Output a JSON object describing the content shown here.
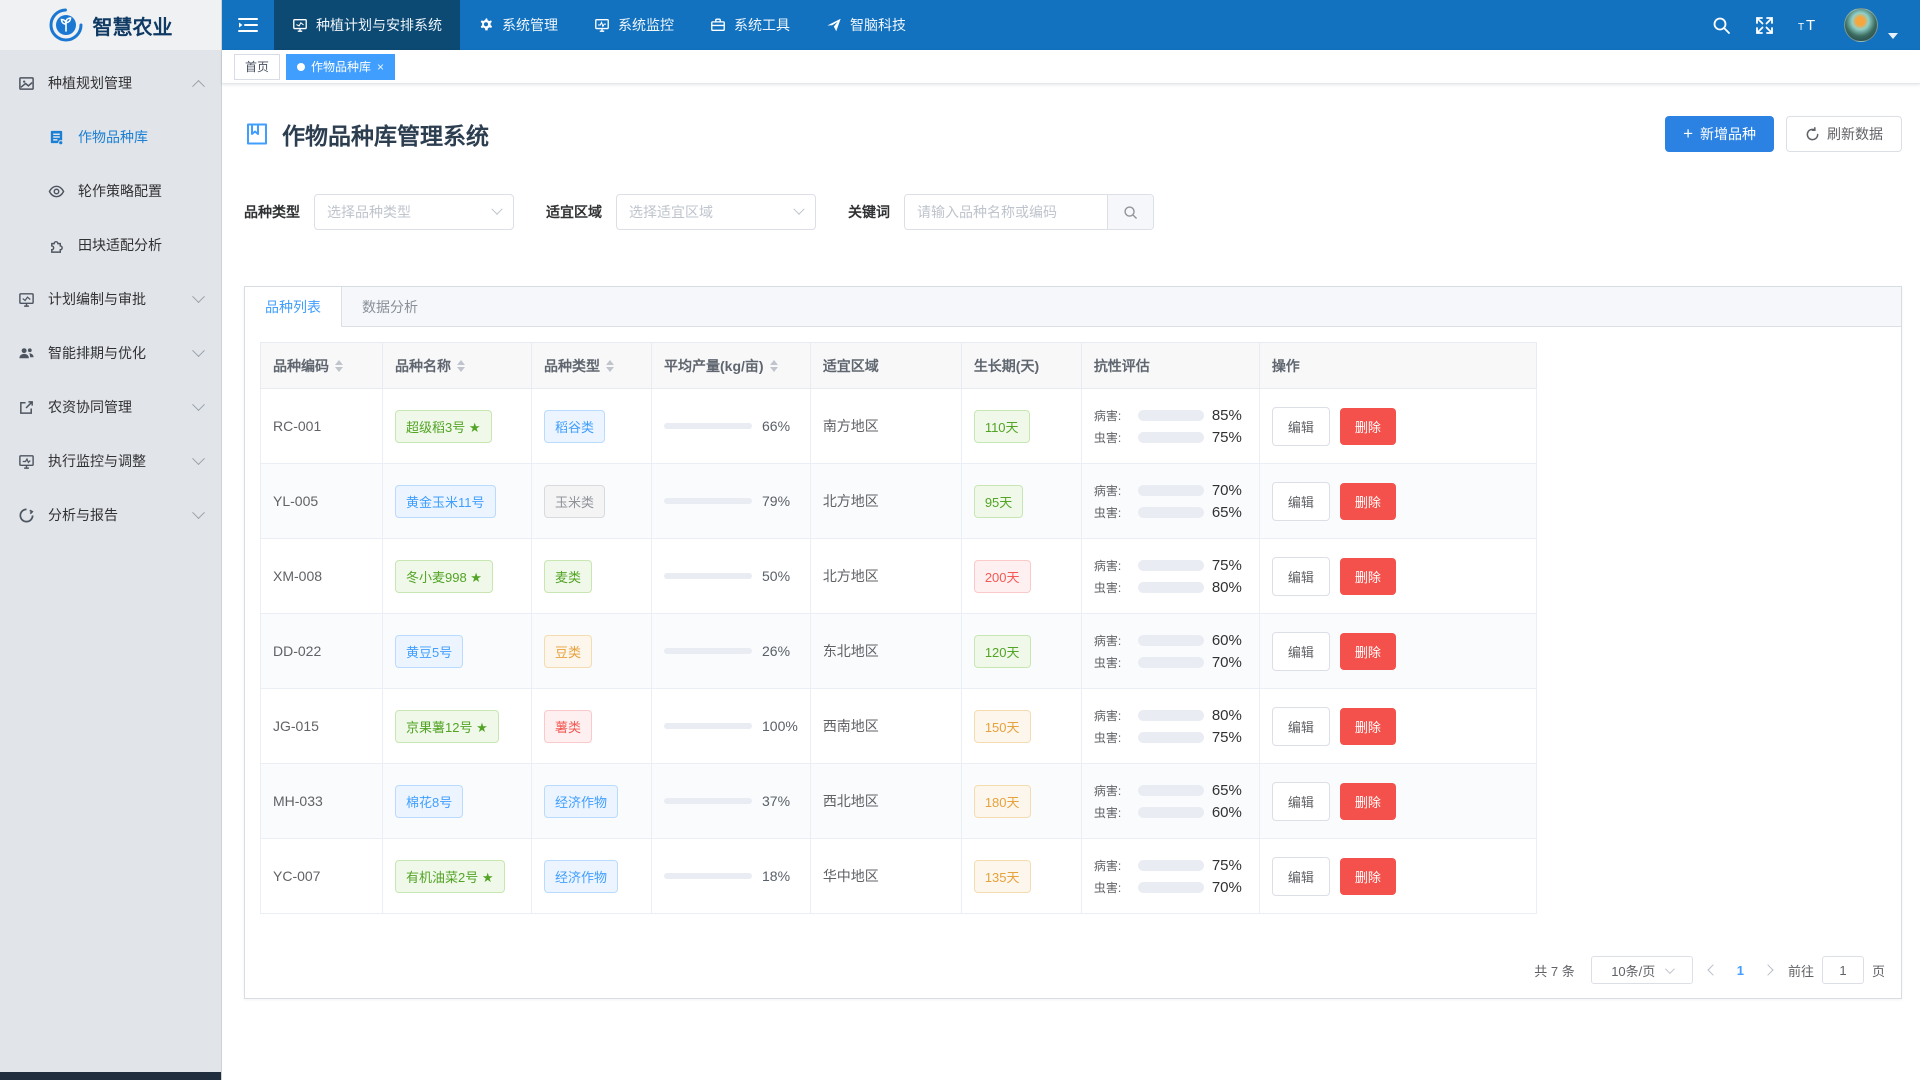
{
  "app": {
    "logo_text": "智慧农业"
  },
  "navbar": {
    "items": [
      {
        "icon": "monitor-icon",
        "label": "种植计划与安排系统",
        "active": true
      },
      {
        "icon": "gear-icon",
        "label": "系统管理",
        "active": false
      },
      {
        "icon": "monitor-chart-icon",
        "label": "系统监控",
        "active": false
      },
      {
        "icon": "toolbox-icon",
        "label": "系统工具",
        "active": false
      },
      {
        "icon": "paper-plane-icon",
        "label": "智脑科技",
        "active": false
      }
    ]
  },
  "sidebar": {
    "items": [
      {
        "icon": "image-icon",
        "label": "种植规划管理",
        "expanded": true
      },
      {
        "icon": "document-icon",
        "label": "作物品种库",
        "active": true
      },
      {
        "icon": "eye-icon",
        "label": "轮作策略配置"
      },
      {
        "icon": "puzzle-icon",
        "label": "田块适配分析"
      },
      {
        "icon": "monitor-icon",
        "label": "计划编制与审批"
      },
      {
        "icon": "users-icon",
        "label": "智能排期与优化"
      },
      {
        "icon": "external-link-icon",
        "label": "农资协同管理"
      },
      {
        "icon": "monitor-icon",
        "label": "执行监控与调整"
      },
      {
        "icon": "analysis-icon",
        "label": "分析与报告"
      }
    ]
  },
  "tags_bar": {
    "tabs": [
      {
        "label": "首页",
        "active": false
      },
      {
        "label": "作物品种库",
        "active": true,
        "close": "×"
      }
    ]
  },
  "page": {
    "title": "作物品种库管理系统",
    "add_button": "新增品种",
    "add_plus": "+",
    "refresh_button": "刷新数据"
  },
  "filters": {
    "type_label": "品种类型",
    "type_placeholder": "选择品种类型",
    "region_label": "适宜区域",
    "region_placeholder": "选择适宜区域",
    "keyword_label": "关键词",
    "keyword_placeholder": "请输入品种名称或编码",
    "keyword_value": ""
  },
  "tabs": [
    {
      "label": "品种列表",
      "active": true
    },
    {
      "label": "数据分析",
      "active": false
    }
  ],
  "table": {
    "columns": [
      {
        "label": "品种编码",
        "sortable": true
      },
      {
        "label": "品种名称",
        "sortable": true
      },
      {
        "label": "品种类型",
        "sortable": true
      },
      {
        "label": "平均产量(kg/亩)",
        "sortable": true
      },
      {
        "label": "适宜区域",
        "sortable": false
      },
      {
        "label": "生长期(天)",
        "sortable": false
      },
      {
        "label": "抗性评估",
        "sortable": false
      },
      {
        "label": "操作",
        "sortable": false
      }
    ],
    "disease_label": "病害:",
    "pest_label": "虫害:",
    "edit_label": "编辑",
    "delete_label": "删除",
    "star_char": "★",
    "rows": [
      {
        "code": "RC-001",
        "name": "超级稻3号",
        "star": true,
        "name_tag": "green",
        "type": "稻谷类",
        "type_tag": "blue",
        "yield_pct": 66,
        "yield_text": "66%",
        "region": "南方地区",
        "growth": "110天",
        "growth_tag": "green",
        "disease_pct": 85,
        "disease_text": "85%",
        "disease_color": "green",
        "pest_pct": 75,
        "pest_text": "75%",
        "pest_color": "orange"
      },
      {
        "code": "YL-005",
        "name": "黄金玉米11号",
        "star": false,
        "name_tag": "blue",
        "type": "玉米类",
        "type_tag": "gray",
        "yield_pct": 79,
        "yield_text": "79%",
        "region": "北方地区",
        "growth": "95天",
        "growth_tag": "green",
        "disease_pct": 70,
        "disease_text": "70%",
        "disease_color": "orange",
        "pest_pct": 65,
        "pest_text": "65%",
        "pest_color": "orange"
      },
      {
        "code": "XM-008",
        "name": "冬小麦998",
        "star": true,
        "name_tag": "green",
        "type": "麦类",
        "type_tag": "green",
        "yield_pct": 50,
        "yield_text": "50%",
        "region": "北方地区",
        "growth": "200天",
        "growth_tag": "red",
        "disease_pct": 75,
        "disease_text": "75%",
        "disease_color": "orange",
        "pest_pct": 80,
        "pest_text": "80%",
        "pest_color": "orange"
      },
      {
        "code": "DD-022",
        "name": "黄豆5号",
        "star": false,
        "name_tag": "blue",
        "type": "豆类",
        "type_tag": "yellow",
        "yield_pct": 26,
        "yield_text": "26%",
        "region": "东北地区",
        "growth": "120天",
        "growth_tag": "green",
        "disease_pct": 60,
        "disease_text": "60%",
        "disease_color": "red",
        "pest_pct": 70,
        "pest_text": "70%",
        "pest_color": "orange"
      },
      {
        "code": "JG-015",
        "name": "京果薯12号",
        "star": true,
        "name_tag": "green",
        "type": "薯类",
        "type_tag": "red",
        "yield_pct": 100,
        "yield_text": "100%",
        "region": "西南地区",
        "growth": "150天",
        "growth_tag": "yellow",
        "disease_pct": 80,
        "disease_text": "80%",
        "disease_color": "orange",
        "pest_pct": 75,
        "pest_text": "75%",
        "pest_color": "orange"
      },
      {
        "code": "MH-033",
        "name": "棉花8号",
        "star": false,
        "name_tag": "blue",
        "type": "经济作物",
        "type_tag": "blue",
        "yield_pct": 37,
        "yield_text": "37%",
        "region": "西北地区",
        "growth": "180天",
        "growth_tag": "yellow",
        "disease_pct": 65,
        "disease_text": "65%",
        "disease_color": "orange",
        "pest_pct": 60,
        "pest_text": "60%",
        "pest_color": "red"
      },
      {
        "code": "YC-007",
        "name": "有机油菜2号",
        "star": true,
        "name_tag": "green",
        "type": "经济作物",
        "type_tag": "blue",
        "yield_pct": 18,
        "yield_text": "18%",
        "region": "华中地区",
        "growth": "135天",
        "growth_tag": "yellow",
        "disease_pct": 75,
        "disease_text": "75%",
        "disease_color": "orange",
        "pest_pct": 70,
        "pest_text": "70%",
        "pest_color": "orange"
      }
    ]
  },
  "pagination": {
    "total_text": "共 7 条",
    "page_size_text": "10条/页",
    "current_page": "1",
    "goto_label": "前往",
    "goto_value": "1",
    "page_unit": "页"
  },
  "colors": {
    "primary": "#2e87e8",
    "resist_green": "#5cb832",
    "resist_orange": "#e2a23c",
    "resist_red": "#f07070",
    "navbar_bg": "#1272bf",
    "navbar_active_bg": "#0d4a73",
    "tag_tab_active": "#409eff"
  }
}
